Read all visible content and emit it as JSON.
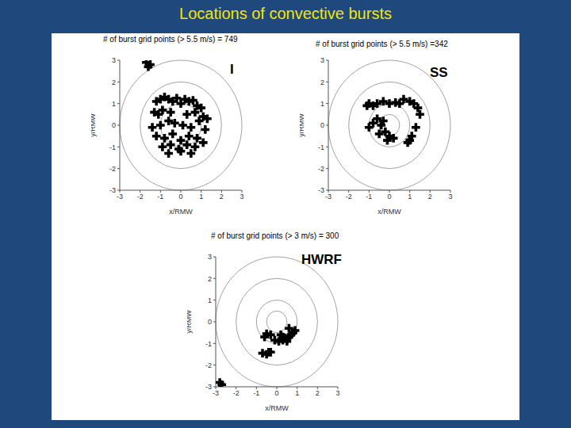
{
  "title": "Locations of convective bursts",
  "chart_data": [
    {
      "type": "scatter",
      "title": "I",
      "subtitle": "# of burst grid points (> 5.5 m/s) = 749",
      "x_label": "x/RMW",
      "y_label": "y/RMW",
      "xlim": [
        -3,
        3
      ],
      "ylim": [
        -3,
        3
      ],
      "xticks": [
        -3,
        -2,
        -1,
        0,
        1,
        2,
        3
      ],
      "yticks": [
        -3,
        -2,
        -1,
        0,
        1,
        2,
        3
      ],
      "rings": [
        1,
        2,
        3
      ],
      "color": "#000000",
      "marker": "cross",
      "x": [
        -1.2,
        -1.0,
        -0.8,
        -0.6,
        -0.4,
        -0.2,
        0.0,
        0.2,
        0.4,
        0.6,
        0.8,
        1.0,
        -1.3,
        -1.1,
        -0.9,
        -0.5,
        0.3,
        0.7,
        1.1,
        1.3,
        -1.4,
        -1.0,
        -0.6,
        -0.3,
        0.1,
        0.5,
        0.9,
        1.2,
        -1.2,
        -0.8,
        -0.4,
        0.0,
        0.4,
        0.8,
        1.1,
        -0.9,
        -0.5,
        -0.1,
        0.3,
        0.7,
        -0.6,
        0.0,
        0.5,
        -1.7,
        -1.5,
        -1.6
      ],
      "values": [
        1.1,
        1.2,
        1.3,
        1.2,
        1.1,
        1.25,
        1.0,
        1.2,
        1.1,
        1.15,
        0.9,
        0.8,
        0.6,
        0.5,
        0.7,
        0.6,
        0.5,
        0.6,
        0.4,
        0.3,
        -0.1,
        0.0,
        0.2,
        0.1,
        0.0,
        -0.1,
        0.2,
        -0.2,
        -0.5,
        -0.6,
        -0.4,
        -0.7,
        -0.5,
        -0.6,
        -0.8,
        -1.0,
        -0.9,
        -1.1,
        -0.9,
        -1.0,
        -1.3,
        -1.2,
        -1.3,
        2.9,
        2.8,
        2.7
      ]
    },
    {
      "type": "scatter",
      "title": "SS",
      "subtitle": "# of burst grid points (> 5.5 m/s) =342",
      "x_label": "x/RMW",
      "y_label": "y/RMW",
      "xlim": [
        -3,
        3
      ],
      "ylim": [
        -3,
        3
      ],
      "xticks": [
        -3,
        -2,
        -1,
        0,
        1,
        2,
        3
      ],
      "yticks": [
        -3,
        -2,
        -1,
        0,
        1,
        2,
        3
      ],
      "rings": [
        0.5,
        1,
        2,
        3
      ],
      "color": "#000000",
      "marker": "cross",
      "x": [
        -1.1,
        -1.0,
        -0.8,
        -0.6,
        -0.3,
        0.0,
        0.3,
        0.5,
        0.7,
        1.0,
        1.2,
        1.4,
        1.5,
        1.3,
        1.1,
        1.0,
        0.9,
        -1.0,
        -0.8,
        -0.6,
        -0.4,
        -0.2,
        0.0,
        0.2,
        -0.1,
        -0.3,
        -0.5
      ],
      "values": [
        0.9,
        1.0,
        0.9,
        1.0,
        1.1,
        1.0,
        1.05,
        1.0,
        1.2,
        1.1,
        1.0,
        0.8,
        0.5,
        -0.1,
        -0.5,
        -0.7,
        -0.8,
        -0.1,
        0.1,
        0.3,
        0.0,
        -0.3,
        -0.5,
        -0.6,
        -0.7,
        0.2,
        -0.4
      ]
    },
    {
      "type": "scatter",
      "title": "HWRF",
      "subtitle": "# of burst grid points (> 3 m/s) = 300",
      "x_label": "x/RMW",
      "y_label": "y/RMW",
      "xlim": [
        -3,
        3
      ],
      "ylim": [
        -3,
        3
      ],
      "xticks": [
        -3,
        -2,
        -1,
        0,
        1,
        2,
        3
      ],
      "yticks": [
        -3,
        -2,
        -1,
        0,
        1,
        2,
        3
      ],
      "rings": [
        0.5,
        1,
        2,
        3
      ],
      "color": "#000000",
      "marker": "cross",
      "x": [
        0.2,
        0.3,
        0.4,
        0.5,
        0.6,
        0.7,
        0.8,
        0.5,
        0.3,
        0.1,
        -0.1,
        -0.3,
        -0.5,
        -0.6,
        -0.4,
        -0.7,
        -0.5,
        -0.3,
        0.9,
        0.6,
        -2.8,
        -2.7
      ],
      "values": [
        -0.6,
        -0.7,
        -0.75,
        -0.8,
        -0.7,
        -0.6,
        -0.5,
        -0.9,
        -0.85,
        -0.9,
        -0.85,
        -0.6,
        -0.55,
        -0.7,
        -1.4,
        -1.45,
        -1.5,
        -1.4,
        -0.4,
        -0.3,
        -2.8,
        -2.9
      ]
    }
  ]
}
